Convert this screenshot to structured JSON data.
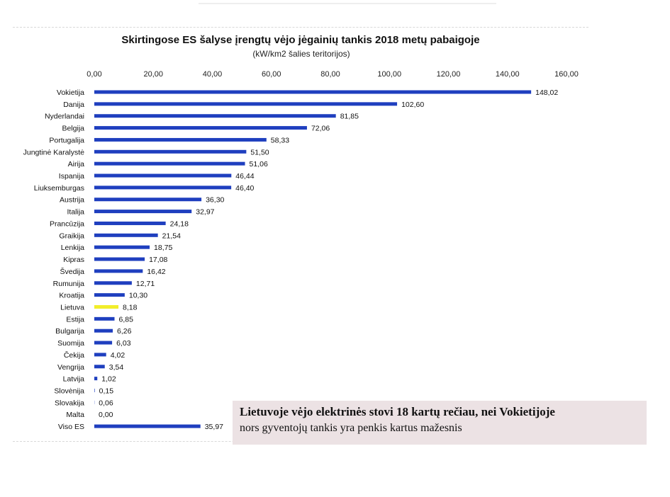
{
  "chart_data": {
    "type": "bar",
    "orientation": "horizontal",
    "title": "Skirtingose ES šalyse įrengtų vėjo jėgainių tankis 2018 metų pabaigoje",
    "subtitle": "(kW/km2 šalies teritorijos)",
    "xlim": [
      0,
      160
    ],
    "ticks": [
      0,
      20,
      40,
      60,
      80,
      100,
      120,
      140,
      160
    ],
    "tick_labels": [
      "0,00",
      "20,00",
      "40,00",
      "60,00",
      "80,00",
      "100,00",
      "120,00",
      "140,00",
      "160,00"
    ],
    "grid": false,
    "categories": [
      "Vokietija",
      "Danija",
      "Nyderlandai",
      "Belgija",
      "Portugalija",
      "Jungtinė Karalystė",
      "Airija",
      "Ispanija",
      "Liuksemburgas",
      "Austrija",
      "Italija",
      "Prancūzija",
      "Graikija",
      "Lenkija",
      "Kipras",
      "Švedija",
      "Rumunija",
      "Kroatija",
      "Lietuva",
      "Estija",
      "Bulgarija",
      "Suomija",
      "Čekija",
      "Vengrija",
      "Latvija",
      "Slovėnija",
      "Slovakija",
      "Malta",
      "Viso ES"
    ],
    "values": [
      148.02,
      102.6,
      81.85,
      72.06,
      58.33,
      51.5,
      51.06,
      46.44,
      46.4,
      36.3,
      32.97,
      24.18,
      21.54,
      18.75,
      17.08,
      16.42,
      12.71,
      10.3,
      8.18,
      6.85,
      6.26,
      6.03,
      4.02,
      3.54,
      1.02,
      0.15,
      0.06,
      0.0,
      35.97
    ],
    "value_labels": [
      "148,02",
      "102,60",
      "81,85",
      "72,06",
      "58,33",
      "51,50",
      "51,06",
      "46,44",
      "46,40",
      "36,30",
      "32,97",
      "24,18",
      "21,54",
      "18,75",
      "17,08",
      "16,42",
      "12,71",
      "10,30",
      "8,18",
      "6,85",
      "6,26",
      "6,03",
      "4,02",
      "3,54",
      "1,02",
      "0,15",
      "0,06",
      "0,00",
      "35,97"
    ],
    "highlight_category": "Lietuva"
  },
  "colors": {
    "bar": "#1f3fbf",
    "highlight": "#f2ee2a",
    "note_background": "#ece2e4"
  },
  "note": {
    "line1": "Lietuvoje vėjo elektrinės stovi 18 kartų rečiau, nei Vokietijoje",
    "line2": "nors gyventojų tankis yra penkis kartus mažesnis"
  }
}
